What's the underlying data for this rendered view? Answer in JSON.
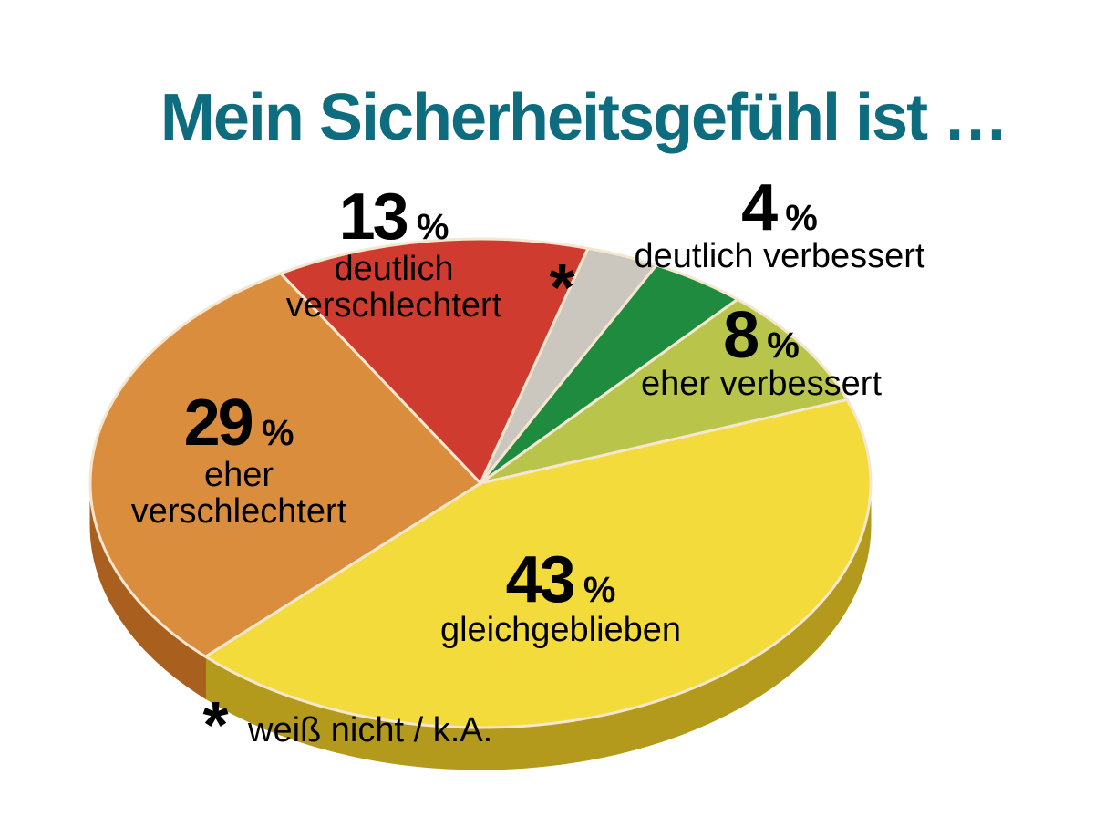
{
  "chart_data": {
    "type": "pie",
    "title": "Mein Sicherheitsgefühl ist …",
    "categories": [
      "gleichgeblieben",
      "eher verschlechtert",
      "deutlich verschlechtert",
      null,
      "deutlich verbessert",
      "eher verbessert"
    ],
    "values": [
      43,
      29,
      13,
      3,
      4,
      8
    ],
    "value_labels": [
      "43 %",
      "29 %",
      "13 %",
      "*",
      "4 %",
      "8 %"
    ],
    "colors": [
      "#f3db3c",
      "#da8d3c",
      "#cf3c2f",
      "#cbc7bf",
      "#1f8b3e",
      "#b8c44a"
    ],
    "side_colors": [
      "#b39a1c",
      "#a95f1d",
      "#9a2519",
      "#8f8b84",
      "#125a27",
      "#7c8a22"
    ],
    "footnote_marker": "*",
    "footnote": "weiß nicht / k.A."
  }
}
